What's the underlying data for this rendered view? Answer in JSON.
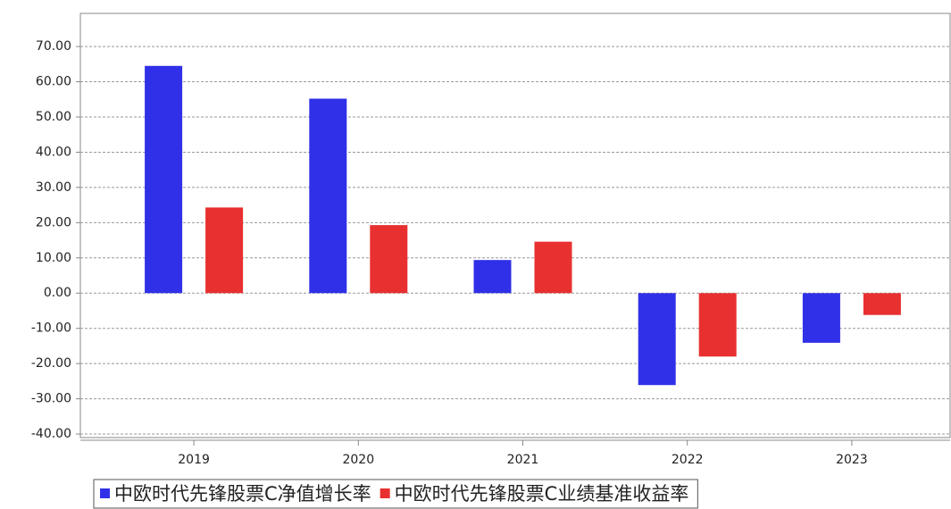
{
  "chart_data": {
    "type": "bar",
    "categories": [
      "2019",
      "2020",
      "2021",
      "2022",
      "2023"
    ],
    "series": [
      {
        "name": "中欧时代先锋股票C净值增长率",
        "color": "#3030e8",
        "values": [
          64.5,
          55.2,
          9.4,
          -26.1,
          -14.1
        ]
      },
      {
        "name": "中欧时代先锋股票C业绩基准收益率",
        "color": "#e83030",
        "values": [
          24.3,
          19.3,
          14.6,
          -18.0,
          -6.2
        ]
      }
    ],
    "ylim": [
      -41,
      79.4
    ],
    "yticks": [
      {
        "value": 70,
        "label": "70.00"
      },
      {
        "value": 60,
        "label": "60.00"
      },
      {
        "value": 50,
        "label": "50.00"
      },
      {
        "value": 40,
        "label": "40.00"
      },
      {
        "value": 30,
        "label": "30.00"
      },
      {
        "value": 20,
        "label": "20.00"
      },
      {
        "value": 10,
        "label": "10.00"
      },
      {
        "value": 0,
        "label": "0.00"
      },
      {
        "value": -10,
        "label": "-10.00"
      },
      {
        "value": -20,
        "label": "-20.00"
      },
      {
        "value": -30,
        "label": "-30.00"
      },
      {
        "value": -40,
        "label": "-40.00"
      }
    ],
    "grid": true,
    "legend": "bottom"
  }
}
